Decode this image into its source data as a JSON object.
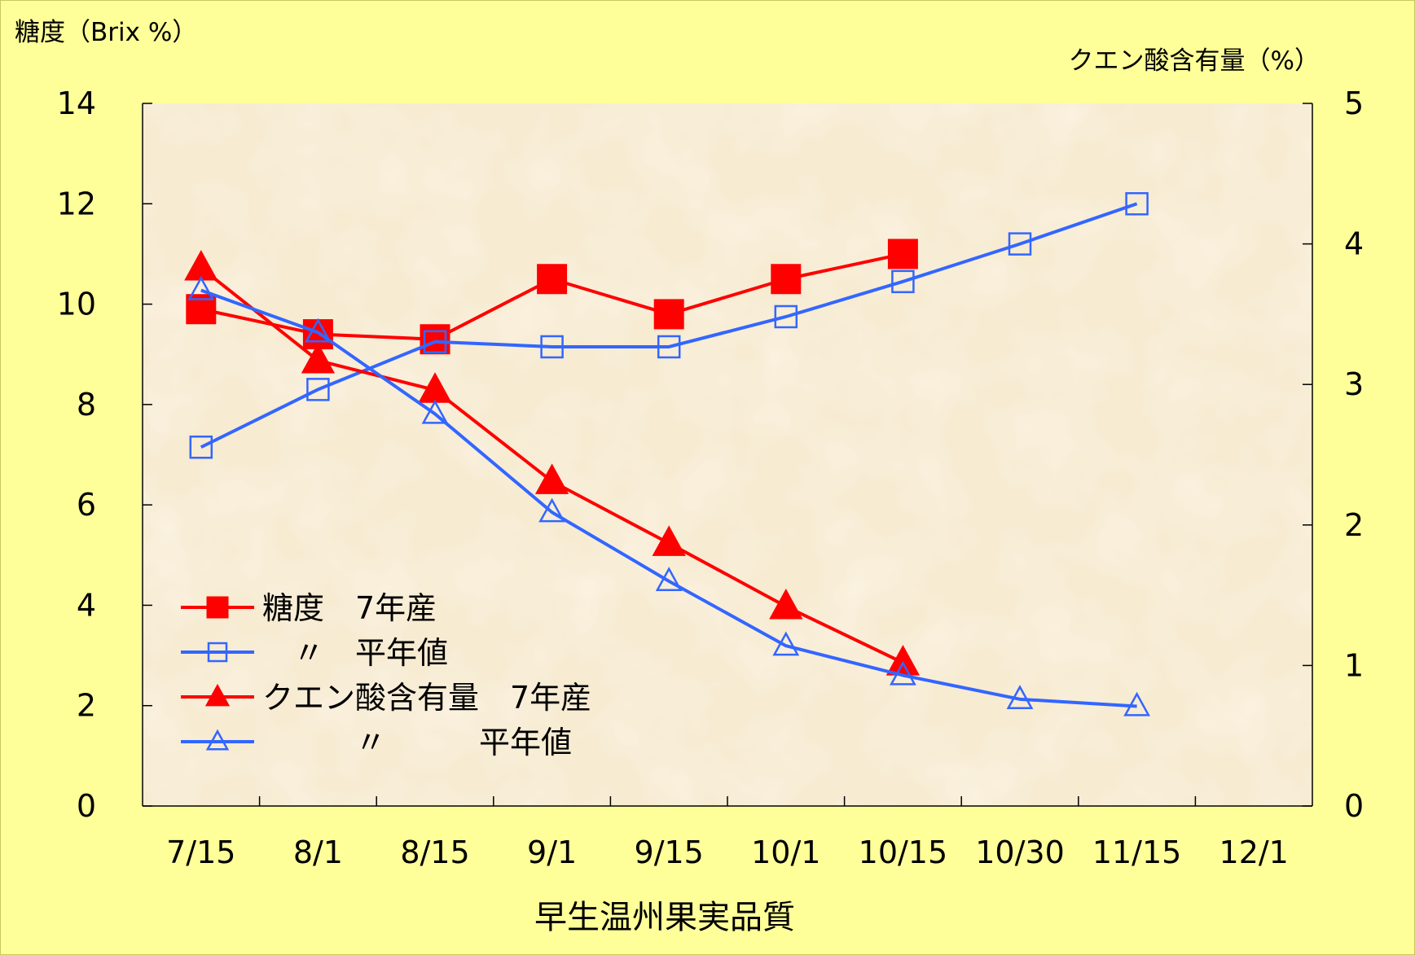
{
  "chart_data": {
    "type": "line",
    "title": "早生温州果実品質",
    "left_axis": {
      "label": "糖度（Brix %）",
      "ylim": [
        0,
        14
      ],
      "ticks": [
        "0",
        "2",
        "4",
        "6",
        "8",
        "10",
        "12",
        "14"
      ]
    },
    "right_axis": {
      "label": "クエン酸含有量（%）",
      "ylim": [
        0,
        5
      ],
      "ticks": [
        "0",
        "1",
        "2",
        "3",
        "4",
        "5"
      ]
    },
    "categories": [
      "7/15",
      "8/1",
      "8/15",
      "9/1",
      "9/15",
      "10/1",
      "10/15",
      "10/30",
      "11/15",
      "12/1"
    ],
    "legend_position": "lower-left",
    "grid": false,
    "series": [
      {
        "name": "糖度　7年産",
        "axis": "left",
        "marker": "filled-square",
        "color": "#FF0000",
        "values": [
          9.9,
          9.4,
          9.3,
          10.5,
          9.8,
          10.5,
          11.0,
          null,
          null,
          null
        ]
      },
      {
        "name": "〃　平年値",
        "axis": "left",
        "marker": "open-square",
        "color": "#3366FF",
        "values": [
          7.15,
          8.3,
          9.25,
          9.15,
          9.15,
          9.75,
          10.45,
          11.2,
          12.0,
          null
        ]
      },
      {
        "name": "クエン酸含有量　7年産",
        "axis": "right",
        "marker": "filled-triangle",
        "color": "#FF0000",
        "values": [
          3.83,
          3.17,
          2.96,
          2.31,
          1.87,
          1.42,
          1.02,
          null,
          null,
          null
        ]
      },
      {
        "name": "〃　　　平年値",
        "axis": "right",
        "marker": "open-triangle",
        "color": "#3366FF",
        "values": [
          3.67,
          3.37,
          2.79,
          2.09,
          1.6,
          1.14,
          0.93,
          0.76,
          0.71,
          null
        ]
      }
    ],
    "legend_labels": [
      "糖度　7年産",
      "　〃　平年値",
      "クエン酸含有量　7年産",
      "　　　〃　　　平年値"
    ]
  }
}
